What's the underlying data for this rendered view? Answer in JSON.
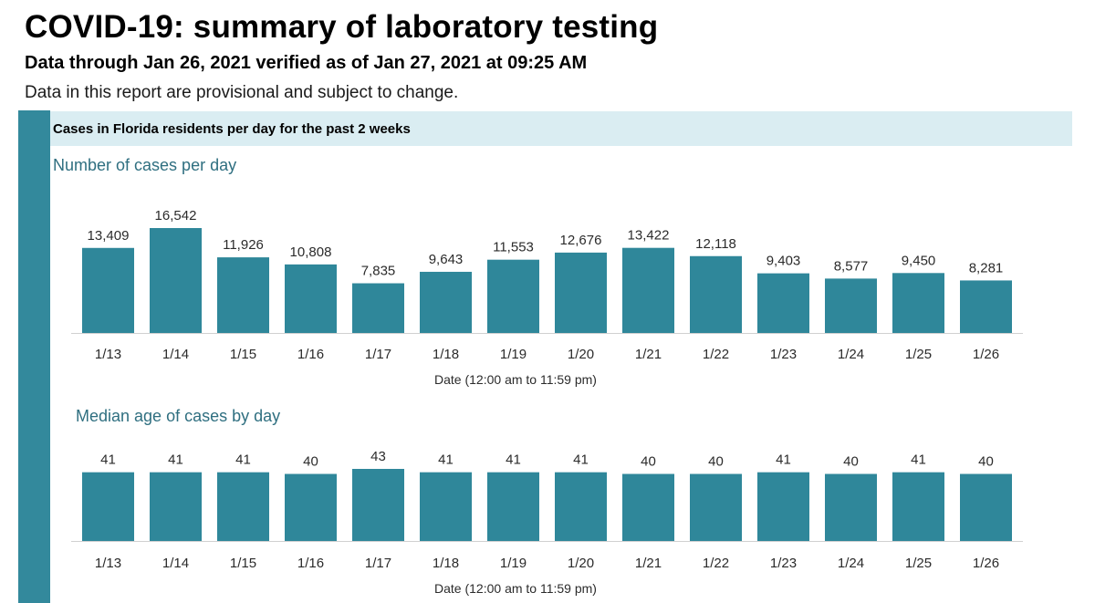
{
  "report": {
    "title": "COVID-19: summary of laboratory testing",
    "subtitle": "Data through Jan 26, 2021 verified as of Jan 27, 2021 at 09:25 AM",
    "disclaimer": "Data in this report are provisional and subject to change.",
    "section_header": "Cases in Florida residents per day for the past 2 weeks"
  },
  "colors": {
    "accent": "#33899c",
    "bar": "#2f879a",
    "header_bg": "#daedf2",
    "chart_title": "#2f6f80"
  },
  "chart_data": [
    {
      "type": "bar",
      "title": "Number of cases per day",
      "xlabel": "Date (12:00 am to 11:59 pm)",
      "ylabel": "",
      "categories": [
        "1/13",
        "1/14",
        "1/15",
        "1/16",
        "1/17",
        "1/18",
        "1/19",
        "1/20",
        "1/21",
        "1/22",
        "1/23",
        "1/24",
        "1/25",
        "1/26"
      ],
      "values": [
        13409,
        16542,
        11926,
        10808,
        7835,
        9643,
        11553,
        12676,
        13422,
        12118,
        9403,
        8577,
        9450,
        8281
      ],
      "value_labels": [
        "13,409",
        "16,542",
        "11,926",
        "10,808",
        "7,835",
        "9,643",
        "11,553",
        "12,676",
        "13,422",
        "12,118",
        "9,403",
        "8,577",
        "9,450",
        "8,281"
      ],
      "ylim": [
        0,
        16542
      ],
      "grid": false
    },
    {
      "type": "bar",
      "title": "Median age of cases by day",
      "xlabel": "Date (12:00 am to 11:59 pm)",
      "ylabel": "",
      "categories": [
        "1/13",
        "1/14",
        "1/15",
        "1/16",
        "1/17",
        "1/18",
        "1/19",
        "1/20",
        "1/21",
        "1/22",
        "1/23",
        "1/24",
        "1/25",
        "1/26"
      ],
      "values": [
        41,
        41,
        41,
        40,
        43,
        41,
        41,
        41,
        40,
        40,
        41,
        40,
        41,
        40
      ],
      "value_labels": [
        "41",
        "41",
        "41",
        "40",
        "43",
        "41",
        "41",
        "41",
        "40",
        "40",
        "41",
        "40",
        "41",
        "40"
      ],
      "ylim": [
        0,
        43
      ],
      "grid": false
    }
  ]
}
